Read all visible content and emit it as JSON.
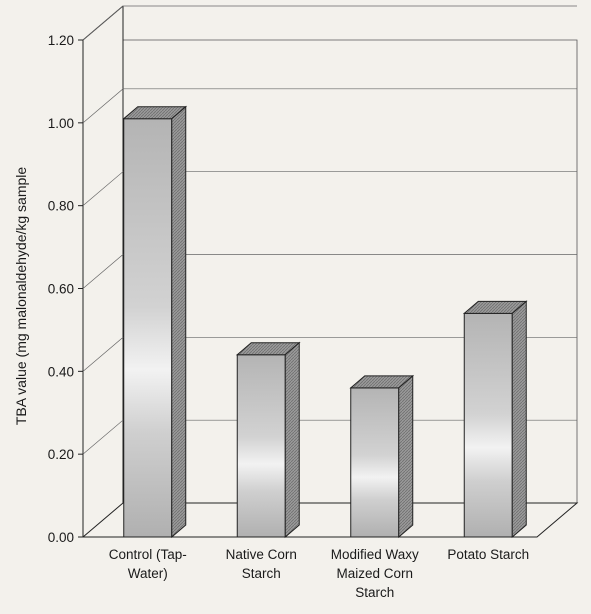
{
  "chart_data": {
    "type": "bar",
    "title": "",
    "xlabel": "",
    "ylabel": "TBA value (mg malonaldehyde/kg sample",
    "ylim": [
      0,
      1.2
    ],
    "yticks": [
      "0.00",
      "0.20",
      "0.40",
      "0.60",
      "0.80",
      "1.00",
      "1.20"
    ],
    "categories": [
      [
        "Control (Tap-",
        "Water)"
      ],
      [
        "Native Corn",
        "Starch"
      ],
      [
        "Modified Waxy",
        "Maized Corn",
        "Starch"
      ],
      [
        "Potato Starch"
      ]
    ],
    "values": [
      1.01,
      0.44,
      0.36,
      0.54
    ],
    "grid": true,
    "style": "3d"
  },
  "colors": {
    "background": "#f3f1ec",
    "bar_front": "#c9c9c9",
    "bar_top": "#a9a9a9",
    "bar_side": "#8a8a8a",
    "axis": "#222222"
  }
}
